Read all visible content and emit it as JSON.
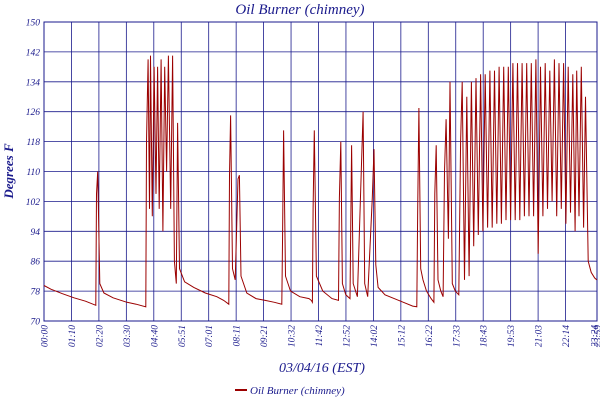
{
  "chart_data": {
    "type": "line",
    "title": "Oil Burner (chimney)",
    "xlabel": "03/04/16 (EST)",
    "ylabel": "Degrees F",
    "ylim": [
      70,
      150
    ],
    "yticks": [
      "150",
      "142",
      "134",
      "126",
      "118",
      "110",
      "102",
      "94",
      "86",
      "78",
      "70"
    ],
    "xticks": [
      "00:00",
      "01:10",
      "02:20",
      "03:30",
      "04:40",
      "05:51",
      "07:01",
      "08:11",
      "09:21",
      "10:32",
      "11:42",
      "12:52",
      "14:02",
      "15:12",
      "16:22",
      "17:33",
      "18:43",
      "19:53",
      "21:03",
      "22:14",
      "23:24",
      "23:59"
    ],
    "grid": true,
    "legend_position": "bottom",
    "colors": {
      "series": "#9b0000",
      "grid": "#1a1a8c",
      "text": "#1a1a8c"
    },
    "series": [
      {
        "name": "Oil Burner (chimney)",
        "points": [
          [
            0,
            79.5
          ],
          [
            0.3,
            78.5
          ],
          [
            0.8,
            77.3
          ],
          [
            1.3,
            76.2
          ],
          [
            1.8,
            75.3
          ],
          [
            2.25,
            74.2
          ],
          [
            2.28,
            104
          ],
          [
            2.33,
            110
          ],
          [
            2.42,
            80
          ],
          [
            2.6,
            77.5
          ],
          [
            3.0,
            76.2
          ],
          [
            3.6,
            75
          ],
          [
            4.0,
            74.5
          ],
          [
            4.42,
            73.8
          ],
          [
            4.45,
            118
          ],
          [
            4.52,
            140
          ],
          [
            4.58,
            100
          ],
          [
            4.62,
            141
          ],
          [
            4.7,
            98
          ],
          [
            4.78,
            138
          ],
          [
            4.86,
            104
          ],
          [
            4.93,
            138
          ],
          [
            5.0,
            100
          ],
          [
            5.08,
            140
          ],
          [
            5.16,
            94
          ],
          [
            5.24,
            138
          ],
          [
            5.32,
            110
          ],
          [
            5.4,
            141
          ],
          [
            5.5,
            100
          ],
          [
            5.58,
            141
          ],
          [
            5.66,
            86
          ],
          [
            5.74,
            80
          ],
          [
            5.8,
            123
          ],
          [
            5.88,
            84
          ],
          [
            6.1,
            80.5
          ],
          [
            6.5,
            79
          ],
          [
            7.0,
            77.5
          ],
          [
            7.5,
            76.5
          ],
          [
            7.8,
            75.5
          ],
          [
            8.02,
            74.5
          ],
          [
            8.05,
            109
          ],
          [
            8.1,
            125
          ],
          [
            8.18,
            84
          ],
          [
            8.3,
            81
          ],
          [
            8.42,
            108
          ],
          [
            8.48,
            109
          ],
          [
            8.55,
            82
          ],
          [
            8.8,
            77.5
          ],
          [
            9.2,
            76
          ],
          [
            9.6,
            75.5
          ],
          [
            10.0,
            75
          ],
          [
            10.32,
            74.5
          ],
          [
            10.35,
            91
          ],
          [
            10.4,
            121
          ],
          [
            10.48,
            82
          ],
          [
            10.7,
            78
          ],
          [
            11.1,
            76.5
          ],
          [
            11.5,
            76
          ],
          [
            11.6,
            75.5
          ],
          [
            11.65,
            75
          ],
          [
            11.68,
            100
          ],
          [
            11.73,
            121
          ],
          [
            11.82,
            82
          ],
          [
            12.1,
            78
          ],
          [
            12.5,
            76
          ],
          [
            12.78,
            75.5
          ],
          [
            12.82,
            103
          ],
          [
            12.88,
            118
          ],
          [
            12.95,
            80
          ],
          [
            13.1,
            77
          ],
          [
            13.28,
            76
          ],
          [
            13.35,
            117
          ],
          [
            13.42,
            80
          ],
          [
            13.6,
            76.5
          ],
          [
            13.78,
            112
          ],
          [
            13.85,
            126
          ],
          [
            13.92,
            80
          ],
          [
            14.05,
            76.5
          ],
          [
            14.25,
            103
          ],
          [
            14.32,
            116
          ],
          [
            14.4,
            85
          ],
          [
            14.5,
            79
          ],
          [
            14.8,
            77
          ],
          [
            15.2,
            76
          ],
          [
            15.6,
            75
          ],
          [
            16.0,
            74
          ],
          [
            16.18,
            73.8
          ],
          [
            16.22,
            100
          ],
          [
            16.27,
            127
          ],
          [
            16.35,
            84
          ],
          [
            16.45,
            81
          ],
          [
            16.6,
            78
          ],
          [
            16.8,
            76
          ],
          [
            16.92,
            75
          ],
          [
            16.96,
            104
          ],
          [
            17.02,
            117
          ],
          [
            17.1,
            81
          ],
          [
            17.22,
            78
          ],
          [
            17.32,
            76.5
          ],
          [
            17.38,
            110
          ],
          [
            17.45,
            124
          ],
          [
            17.55,
            92
          ],
          [
            17.62,
            134
          ],
          [
            17.72,
            80
          ],
          [
            17.85,
            78
          ],
          [
            18.0,
            77
          ],
          [
            18.08,
            118
          ],
          [
            18.15,
            134
          ],
          [
            18.25,
            81
          ],
          [
            18.35,
            130
          ],
          [
            18.45,
            82
          ],
          [
            18.55,
            134
          ],
          [
            18.65,
            90
          ],
          [
            18.75,
            135
          ],
          [
            18.85,
            93
          ],
          [
            18.95,
            136
          ],
          [
            19.05,
            94
          ],
          [
            19.15,
            136
          ],
          [
            19.25,
            95
          ],
          [
            19.35,
            137
          ],
          [
            19.45,
            95
          ],
          [
            19.55,
            137
          ],
          [
            19.65,
            96
          ],
          [
            19.75,
            138
          ],
          [
            19.85,
            96
          ],
          [
            19.95,
            138
          ],
          [
            20.05,
            97
          ],
          [
            20.15,
            138
          ],
          [
            20.25,
            97
          ],
          [
            20.35,
            139
          ],
          [
            20.45,
            97
          ],
          [
            20.55,
            139
          ],
          [
            20.65,
            97
          ],
          [
            20.75,
            139
          ],
          [
            20.85,
            98
          ],
          [
            20.95,
            139
          ],
          [
            21.05,
            98
          ],
          [
            21.15,
            139
          ],
          [
            21.25,
            98
          ],
          [
            21.35,
            140
          ],
          [
            21.45,
            88
          ],
          [
            21.55,
            138
          ],
          [
            21.65,
            98
          ],
          [
            21.75,
            139
          ],
          [
            21.85,
            100
          ],
          [
            21.95,
            137
          ],
          [
            22.05,
            102
          ],
          [
            22.15,
            140
          ],
          [
            22.25,
            98
          ],
          [
            22.35,
            139
          ],
          [
            22.45,
            100
          ],
          [
            22.55,
            139
          ],
          [
            22.65,
            96
          ],
          [
            22.75,
            138
          ],
          [
            22.85,
            99
          ],
          [
            22.95,
            136
          ],
          [
            23.05,
            94
          ],
          [
            23.12,
            137
          ],
          [
            23.22,
            98
          ],
          [
            23.32,
            138
          ],
          [
            23.42,
            95
          ],
          [
            23.5,
            130
          ],
          [
            23.62,
            86
          ],
          [
            23.75,
            83
          ],
          [
            23.9,
            81.5
          ],
          [
            23.99,
            81
          ]
        ]
      }
    ]
  }
}
